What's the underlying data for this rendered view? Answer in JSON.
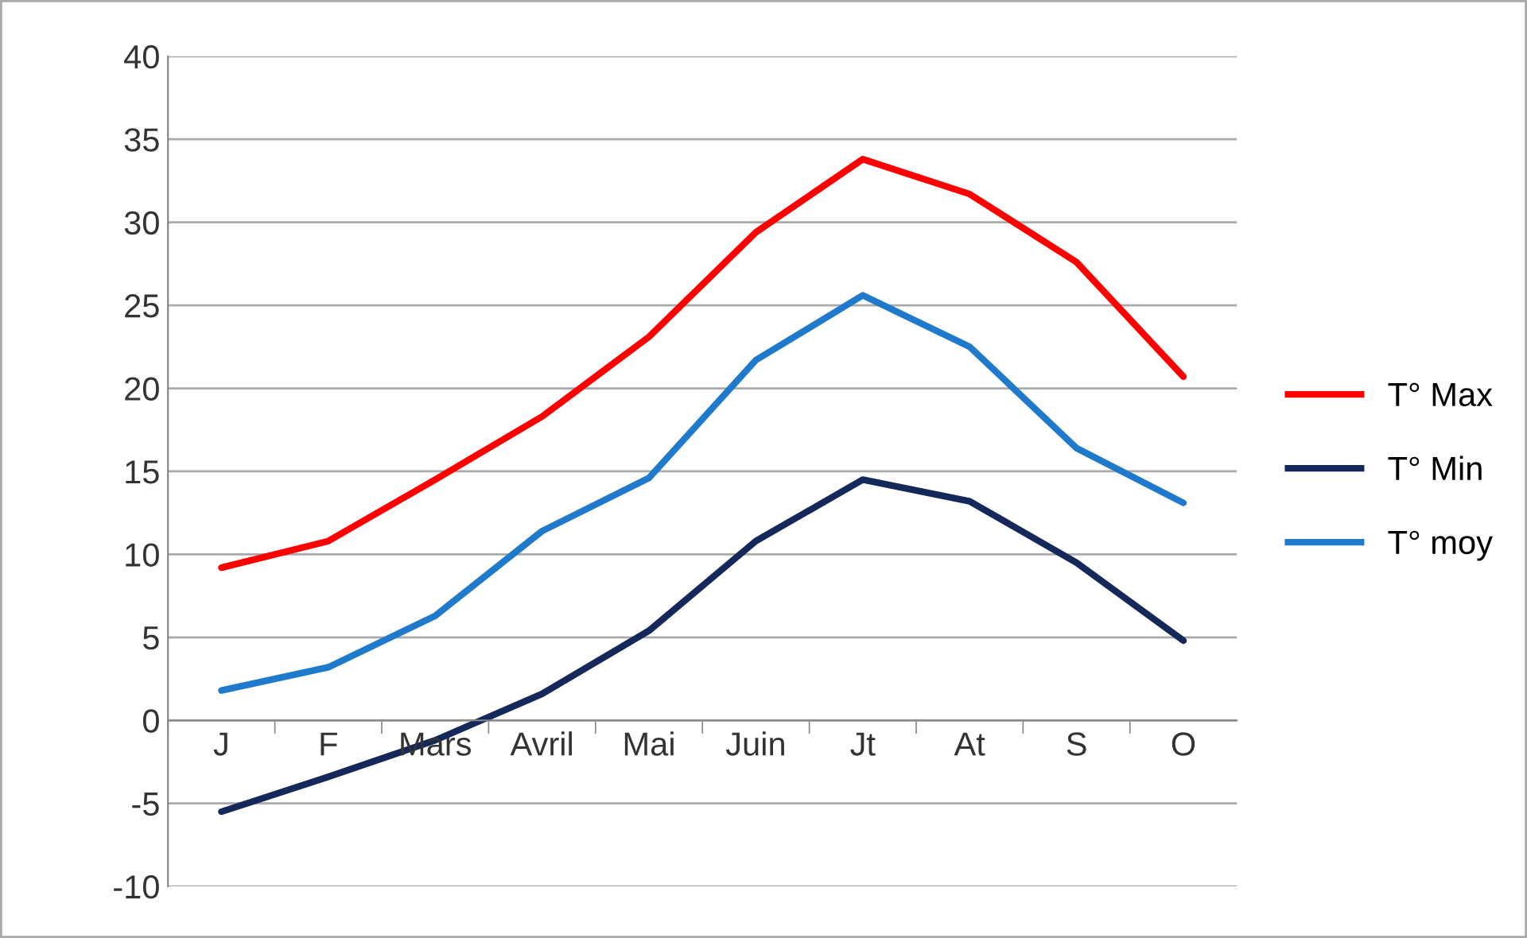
{
  "chart_data": {
    "type": "line",
    "categories": [
      "J",
      "F",
      "Mars",
      "Avril",
      "Mai",
      "Juin",
      "Jt",
      "At",
      "S",
      "O"
    ],
    "series": [
      {
        "name": "T° Max",
        "color": "#ff0000",
        "values": [
          9.2,
          10.8,
          14.5,
          18.3,
          23.1,
          29.4,
          33.8,
          31.7,
          27.6,
          20.7
        ]
      },
      {
        "name": "T° Min",
        "color": "#14285a",
        "values": [
          -5.5,
          -3.4,
          -1.2,
          1.6,
          5.4,
          10.8,
          14.5,
          13.2,
          9.5,
          4.8
        ]
      },
      {
        "name": "T° moy",
        "color": "#1f7acc",
        "values": [
          1.8,
          3.2,
          6.3,
          11.4,
          14.6,
          21.7,
          25.6,
          22.5,
          16.4,
          13.1
        ]
      }
    ],
    "ylim": [
      -10,
      40
    ],
    "yticks": [
      -10,
      -5,
      0,
      5,
      10,
      15,
      20,
      25,
      30,
      35,
      40
    ],
    "grid": "y",
    "legend": "right",
    "marker": "none",
    "line_style": "solid"
  }
}
